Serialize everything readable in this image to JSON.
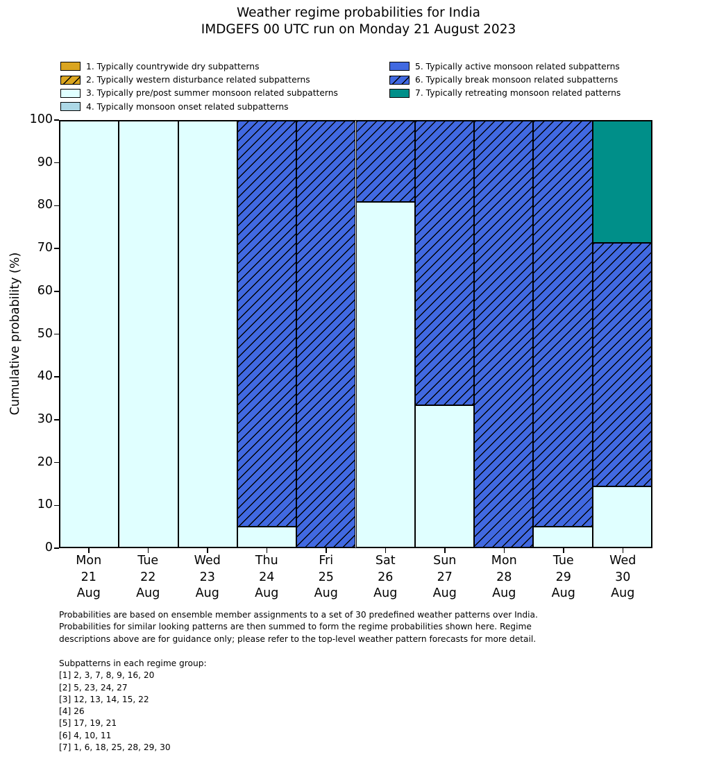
{
  "title": {
    "lines": [
      "Weather regime probabilities for India",
      "IMDGEFS 00 UTC run on Monday 21 August 2023"
    ]
  },
  "legend": {
    "columns": [
      {
        "items": [
          {
            "label": "1. Typically countrywide dry subpatterns",
            "color": "#DAA520",
            "hatch": false
          },
          {
            "label": "2. Typically western disturbance related subpatterns",
            "color": "#DAA520",
            "hatch": true
          },
          {
            "label": "3. Typically pre/post summer monsoon related subpatterns",
            "color": "#E0FFFF",
            "hatch": false
          },
          {
            "label": "4. Typically monsoon onset related subpatterns",
            "color": "#ADD8E6",
            "hatch": false
          }
        ]
      },
      {
        "items": [
          {
            "label": "5. Typically active monsoon related subpatterns",
            "color": "#4169E1",
            "hatch": false
          },
          {
            "label": "6. Typically break monsoon related subpatterns",
            "color": "#4169E1",
            "hatch": true
          },
          {
            "label": "7. Typically retreating monsoon related patterns",
            "color": "#008F89",
            "hatch": false
          }
        ]
      }
    ]
  },
  "chart_data": {
    "type": "bar",
    "stacked": true,
    "title": "Weather regime probabilities for India — IMDGEFS 00 UTC run on Monday 21 August 2023",
    "xlabel": "",
    "ylabel": "Cumulative probability (%)",
    "ylim": [
      0,
      100
    ],
    "yticks": [
      0,
      10,
      20,
      30,
      40,
      50,
      60,
      70,
      80,
      90,
      100
    ],
    "grid": false,
    "legend_position": "above plot, two columns",
    "categories": [
      "Mon 21 Aug",
      "Tue 22 Aug",
      "Wed 23 Aug",
      "Thu 24 Aug",
      "Fri 25 Aug",
      "Sat 26 Aug",
      "Sun 27 Aug",
      "Mon 28 Aug",
      "Tue 29 Aug",
      "Wed 30 Aug"
    ],
    "category_label_lines": [
      [
        "Mon",
        "21",
        "Aug"
      ],
      [
        "Tue",
        "22",
        "Aug"
      ],
      [
        "Wed",
        "23",
        "Aug"
      ],
      [
        "Thu",
        "24",
        "Aug"
      ],
      [
        "Fri",
        "25",
        "Aug"
      ],
      [
        "Sat",
        "26",
        "Aug"
      ],
      [
        "Sun",
        "27",
        "Aug"
      ],
      [
        "Mon",
        "28",
        "Aug"
      ],
      [
        "Tue",
        "29",
        "Aug"
      ],
      [
        "Wed",
        "30",
        "Aug"
      ]
    ],
    "series": [
      {
        "key": "regime-1",
        "name": "1. Typically countrywide dry subpatterns",
        "color": "#DAA520",
        "hatch": false,
        "values": [
          0,
          0,
          0,
          0,
          0,
          0,
          0,
          0,
          0,
          0
        ]
      },
      {
        "key": "regime-2",
        "name": "2. Typically western disturbance related subpatterns",
        "color": "#DAA520",
        "hatch": true,
        "values": [
          0,
          0,
          0,
          0,
          0,
          0,
          0,
          0,
          0,
          0
        ]
      },
      {
        "key": "regime-3",
        "name": "3. Typically pre/post summer monsoon related subpatterns",
        "color": "#E0FFFF",
        "hatch": false,
        "values": [
          100,
          100,
          100,
          4.8,
          0,
          81,
          33.3,
          0,
          4.8,
          14.3
        ]
      },
      {
        "key": "regime-4",
        "name": "4. Typically monsoon onset related subpatterns",
        "color": "#ADD8E6",
        "hatch": false,
        "values": [
          0,
          0,
          0,
          0,
          0,
          0,
          0,
          0,
          0,
          0
        ]
      },
      {
        "key": "regime-5",
        "name": "5. Typically active monsoon related subpatterns",
        "color": "#4169E1",
        "hatch": false,
        "values": [
          0,
          0,
          0,
          0,
          0,
          0,
          0,
          0,
          0,
          0
        ]
      },
      {
        "key": "regime-6",
        "name": "6. Typically break monsoon related subpatterns",
        "color": "#4169E1",
        "hatch": true,
        "values": [
          0,
          0,
          0,
          95.2,
          100,
          19,
          66.7,
          100,
          95.2,
          57.1
        ]
      },
      {
        "key": "regime-7",
        "name": "7. Typically retreating monsoon related patterns",
        "color": "#008F89",
        "hatch": false,
        "values": [
          0,
          0,
          0,
          0,
          0,
          0,
          0,
          0,
          0,
          28.6
        ]
      }
    ]
  },
  "footnote": {
    "lines": [
      "Probabilities are based on ensemble member assignments to a set of 30 predefined weather patterns over India.",
      "Probabilities for similar looking patterns are then summed to form the regime probabilities shown here. Regime",
      "descriptions above are for guidance only; please refer to the top-level weather pattern forecasts for more detail."
    ]
  },
  "subpatterns": {
    "heading": "Subpatterns in each regime group:",
    "lines": [
      "[1] 2, 3, 7, 8, 9, 16, 20",
      "[2] 5, 23, 24, 27",
      "[3] 12, 13, 14, 15, 22",
      "[4] 26",
      "[5] 17, 19, 21",
      "[6] 4, 10, 11",
      "[7] 1, 6, 18, 25, 28, 29, 30"
    ]
  }
}
